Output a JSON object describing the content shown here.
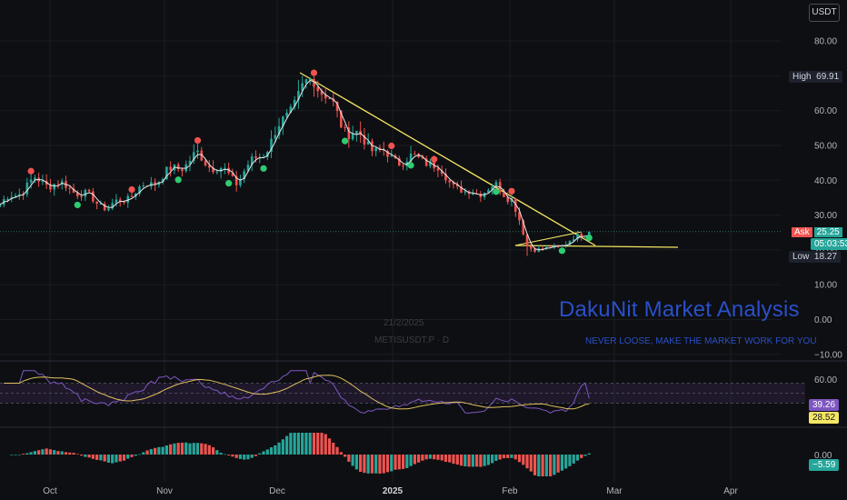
{
  "currency_button": "USDT",
  "price_axis": [
    "80.00",
    "70.00",
    "60.00",
    "50.00",
    "40.00",
    "30.00",
    "20.00",
    "10.00",
    "0.00",
    "−10.00"
  ],
  "time_axis": [
    {
      "label": "Oct",
      "bold": false
    },
    {
      "label": "Nov",
      "bold": false
    },
    {
      "label": "Dec",
      "bold": false
    },
    {
      "label": "2025",
      "bold": true
    },
    {
      "label": "Feb",
      "bold": false
    },
    {
      "label": "Mar",
      "bold": false
    },
    {
      "label": "Apr",
      "bold": false
    }
  ],
  "markers": {
    "high_label": "High",
    "high_value": "69.91",
    "ask_label": "Ask",
    "ask_value": "25.25",
    "countdown": "05:03:53",
    "low_label": "Low",
    "low_value": "18.27"
  },
  "rsi": {
    "axis_label": "60.00",
    "rsi_value": "39.26",
    "ma_value": "28.52"
  },
  "oscillator": {
    "axis_label": "0.00",
    "value": "−5.59"
  },
  "watermark": {
    "title": "DakuNit Market Analysis",
    "subtitle": "NEVER LOOSE, MAKE THE MARKET WORK FOR YOU",
    "date": "21/2/2025",
    "symbol": "METISUSDT.P · D"
  },
  "colors": {
    "up": "#26a69a",
    "down": "#ef5350",
    "trendline": "#f5e663",
    "rsi": "#7e57c2",
    "rsi_ma": "#e0c060",
    "text_axis": "#b2b5be",
    "watermark": "#2a4fc9",
    "background": "#0e0f12"
  },
  "chart_data": [
    {
      "type": "line",
      "name": "price",
      "y_scale": "linear",
      "ylim": [
        -10,
        85
      ],
      "x_ticks": [
        "Oct",
        "Nov",
        "Dec",
        "2025",
        "Feb",
        "Mar",
        "Apr"
      ],
      "x": [
        "Sep 22",
        "Oct 1",
        "Oct 10",
        "Oct 20",
        "Nov 1",
        "Nov 12",
        "Nov 22",
        "Dec 1",
        "Dec 6",
        "Dec 12",
        "Dec 20",
        "Jan 1",
        "Jan 10",
        "Jan 20",
        "Jan 28",
        "Feb 1",
        "Feb 5",
        "Feb 10",
        "Feb 15",
        "Feb 21"
      ],
      "series": [
        {
          "values": [
            33,
            40,
            38,
            32,
            40,
            47,
            40,
            51,
            61,
            69.9,
            55,
            46,
            46,
            36,
            38,
            35,
            21,
            20,
            22,
            25.25
          ]
        }
      ],
      "annotations": [
        {
          "type": "trendline",
          "from": [
            "Dec 6",
            70
          ],
          "to": [
            "Feb 23",
            22
          ]
        },
        {
          "type": "support",
          "value": 20.5
        },
        {
          "type": "high",
          "value": 69.91
        },
        {
          "type": "low",
          "value": 18.27
        },
        {
          "type": "last_price",
          "value": 25.25
        }
      ]
    },
    {
      "type": "line",
      "name": "RSI",
      "ylim": [
        0,
        100
      ],
      "y_ticks": [
        60
      ],
      "levels": [
        70,
        50,
        30
      ],
      "last": {
        "rsi": 39.26,
        "ma": 28.52
      }
    },
    {
      "type": "bar",
      "name": "oscillator",
      "y_ticks": [
        0
      ],
      "last": -5.59
    }
  ]
}
